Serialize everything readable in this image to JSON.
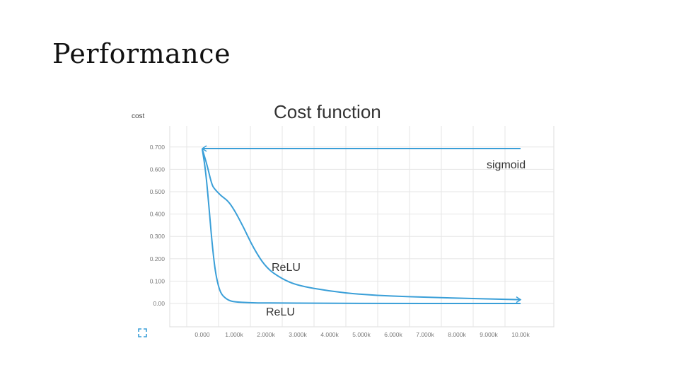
{
  "slide": {
    "title": "Performance"
  },
  "chart_data": {
    "type": "line",
    "title": "Cost function",
    "ylabel": "cost",
    "xlabel": "",
    "xlim": [
      0,
      10000
    ],
    "ylim": [
      0,
      0.75
    ],
    "grid": true,
    "line_color": "#3a9fd8",
    "x_ticks": [
      0,
      1000,
      2000,
      3000,
      4000,
      5000,
      6000,
      7000,
      8000,
      9000,
      10000
    ],
    "x_tick_labels": [
      "0.000",
      "1.000k",
      "2.000k",
      "3.000k",
      "4.000k",
      "5.000k",
      "6.000k",
      "7.000k",
      "8.000k",
      "9.000k",
      "10.00k"
    ],
    "y_ticks": [
      0,
      0.1,
      0.2,
      0.3,
      0.4,
      0.5,
      0.6,
      0.7
    ],
    "y_tick_labels": [
      "0.00",
      "0.100",
      "0.200",
      "0.300",
      "0.400",
      "0.500",
      "0.600",
      "0.700"
    ],
    "series": [
      {
        "name": "sigmoid",
        "x": [
          0,
          1000,
          2000,
          4000,
          6000,
          8000,
          10000
        ],
        "y": [
          0.693,
          0.693,
          0.693,
          0.693,
          0.693,
          0.693,
          0.693
        ]
      },
      {
        "name": "ReLU",
        "x": [
          0,
          150,
          300,
          400,
          600,
          800,
          1000,
          1300,
          1600,
          2000,
          2500,
          3000,
          4000,
          5000,
          6000,
          7000,
          8000,
          9000,
          10000
        ],
        "y": [
          0.69,
          0.62,
          0.53,
          0.51,
          0.48,
          0.46,
          0.42,
          0.34,
          0.25,
          0.16,
          0.11,
          0.08,
          0.055,
          0.04,
          0.033,
          0.028,
          0.024,
          0.02,
          0.017
        ]
      },
      {
        "name": "ReLU",
        "x": [
          0,
          100,
          200,
          300,
          400,
          500,
          600,
          800,
          1000,
          1500,
          2000,
          4000,
          6000,
          8000,
          10000
        ],
        "y": [
          0.69,
          0.6,
          0.45,
          0.28,
          0.15,
          0.08,
          0.04,
          0.015,
          0.007,
          0.003,
          0.002,
          0.001,
          0.0,
          0.0,
          0.0
        ]
      }
    ]
  },
  "toolbar": {
    "expand_icon": "expand-icon"
  }
}
